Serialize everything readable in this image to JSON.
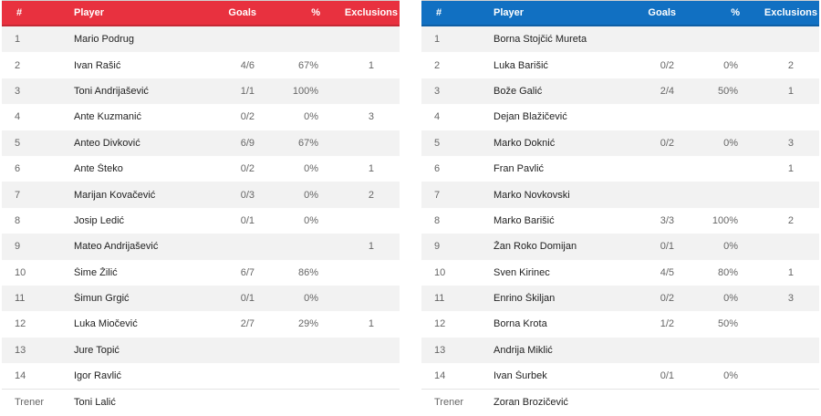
{
  "left_table": {
    "accent": "#e8313f",
    "headers": {
      "num": "#",
      "player": "Player",
      "goals": "Goals",
      "pct": "%",
      "exclusions": "Exclusions"
    },
    "rows": [
      {
        "num": "1",
        "player": "Mario Podrug",
        "goals": "",
        "pct": "",
        "exclusions": ""
      },
      {
        "num": "2",
        "player": "Ivan Rašić",
        "goals": "4/6",
        "pct": "67%",
        "exclusions": "1"
      },
      {
        "num": "3",
        "player": "Toni Andrijašević",
        "goals": "1/1",
        "pct": "100%",
        "exclusions": ""
      },
      {
        "num": "4",
        "player": "Ante Kuzmanić",
        "goals": "0/2",
        "pct": "0%",
        "exclusions": "3"
      },
      {
        "num": "5",
        "player": "Anteo Divković",
        "goals": "6/9",
        "pct": "67%",
        "exclusions": ""
      },
      {
        "num": "6",
        "player": "Ante Šteko",
        "goals": "0/2",
        "pct": "0%",
        "exclusions": "1"
      },
      {
        "num": "7",
        "player": "Marijan Kovačević",
        "goals": "0/3",
        "pct": "0%",
        "exclusions": "2"
      },
      {
        "num": "8",
        "player": "Josip Ledić",
        "goals": "0/1",
        "pct": "0%",
        "exclusions": ""
      },
      {
        "num": "9",
        "player": "Mateo Andrijašević",
        "goals": "",
        "pct": "",
        "exclusions": "1"
      },
      {
        "num": "10",
        "player": "Šime Žilić",
        "goals": "6/7",
        "pct": "86%",
        "exclusions": ""
      },
      {
        "num": "11",
        "player": "Šimun Grgić",
        "goals": "0/1",
        "pct": "0%",
        "exclusions": ""
      },
      {
        "num": "12",
        "player": "Luka Miočević",
        "goals": "2/7",
        "pct": "29%",
        "exclusions": "1"
      },
      {
        "num": "13",
        "player": "Jure Topić",
        "goals": "",
        "pct": "",
        "exclusions": ""
      },
      {
        "num": "14",
        "player": "Igor Ravlić",
        "goals": "",
        "pct": "",
        "exclusions": ""
      }
    ],
    "coach": {
      "label": "Trener",
      "name": "Toni Lalić"
    }
  },
  "right_table": {
    "accent": "#1170c2",
    "headers": {
      "num": "#",
      "player": "Player",
      "goals": "Goals",
      "pct": "%",
      "exclusions": "Exclusions"
    },
    "rows": [
      {
        "num": "1",
        "player": "Borna Stojčić Mureta",
        "goals": "",
        "pct": "",
        "exclusions": ""
      },
      {
        "num": "2",
        "player": "Luka Barišić",
        "goals": "0/2",
        "pct": "0%",
        "exclusions": "2"
      },
      {
        "num": "3",
        "player": "Bože Galić",
        "goals": "2/4",
        "pct": "50%",
        "exclusions": "1"
      },
      {
        "num": "4",
        "player": "Dejan Blažičević",
        "goals": "",
        "pct": "",
        "exclusions": ""
      },
      {
        "num": "5",
        "player": "Marko Doknić",
        "goals": "0/2",
        "pct": "0%",
        "exclusions": "3"
      },
      {
        "num": "6",
        "player": "Fran Pavlić",
        "goals": "",
        "pct": "",
        "exclusions": "1"
      },
      {
        "num": "7",
        "player": "Marko Novkovski",
        "goals": "",
        "pct": "",
        "exclusions": ""
      },
      {
        "num": "8",
        "player": "Marko Barišić",
        "goals": "3/3",
        "pct": "100%",
        "exclusions": "2"
      },
      {
        "num": "9",
        "player": "Žan Roko Domijan",
        "goals": "0/1",
        "pct": "0%",
        "exclusions": ""
      },
      {
        "num": "10",
        "player": "Sven Kirinec",
        "goals": "4/5",
        "pct": "80%",
        "exclusions": "1"
      },
      {
        "num": "11",
        "player": "Enrino Škiljan",
        "goals": "0/2",
        "pct": "0%",
        "exclusions": "3"
      },
      {
        "num": "12",
        "player": "Borna Krota",
        "goals": "1/2",
        "pct": "50%",
        "exclusions": ""
      },
      {
        "num": "13",
        "player": "Andrija Miklić",
        "goals": "",
        "pct": "",
        "exclusions": ""
      },
      {
        "num": "14",
        "player": "Ivan Šurbek",
        "goals": "0/1",
        "pct": "0%",
        "exclusions": ""
      }
    ],
    "coach": {
      "label": "Trener",
      "name": "Zoran Brozičević"
    }
  }
}
